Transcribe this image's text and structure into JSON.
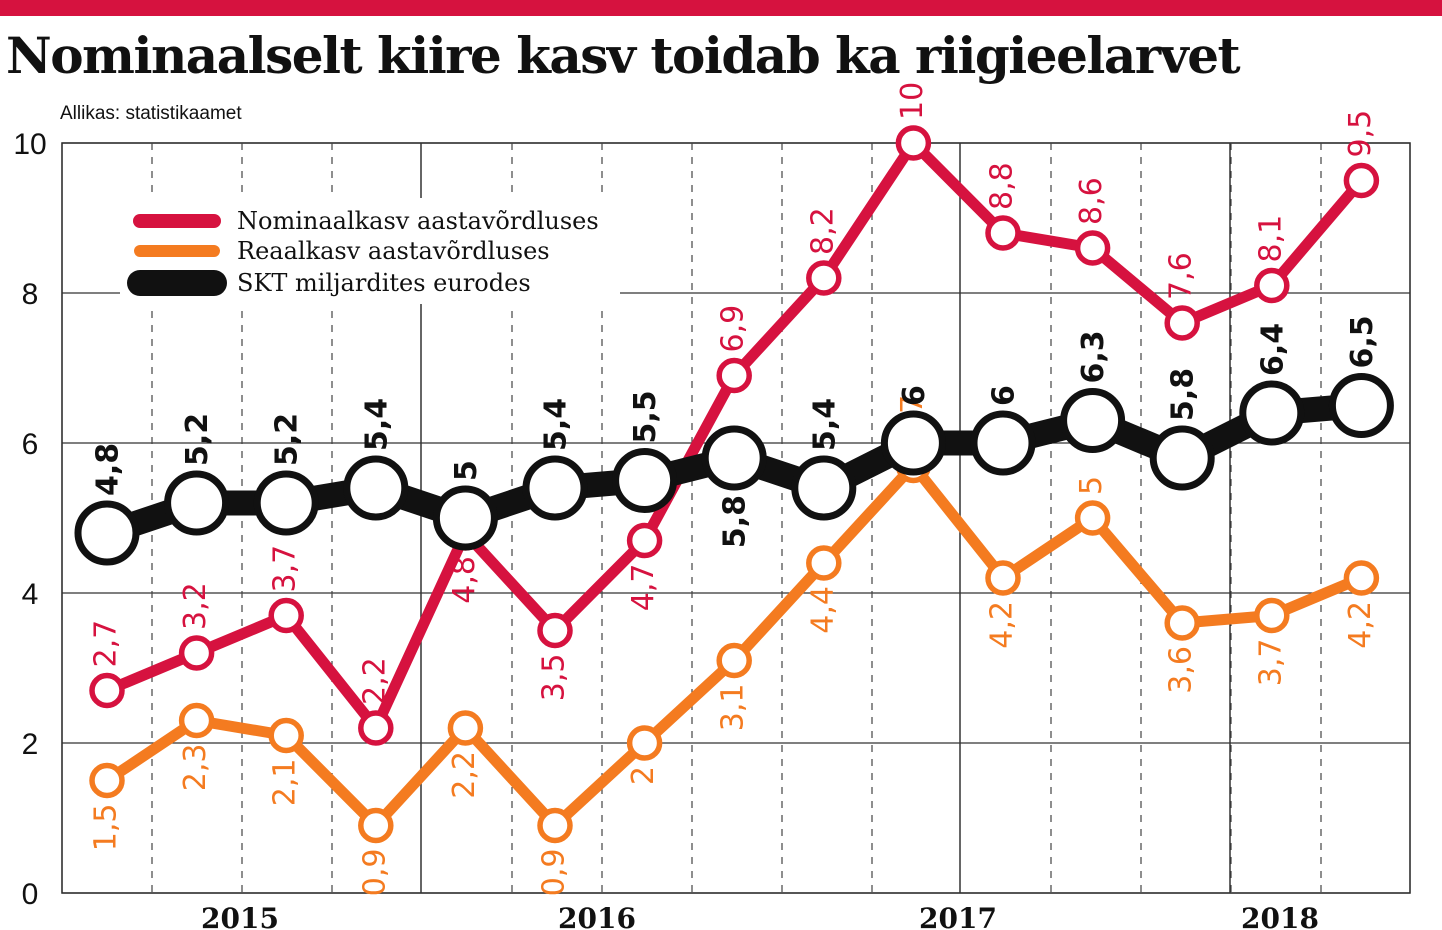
{
  "title": "Nominaalselt kiire kasv toidab ka riigieelarvet",
  "source": "Allikas: statistikaamet",
  "colors": {
    "nominal": "#d6123f",
    "real": "#f47b20",
    "gdp": "#111111",
    "accent_bar": "#d6123f"
  },
  "chart_data": {
    "type": "line",
    "title": "Nominaalselt kiire kasv toidab ka riigieelarvet",
    "ylim": [
      0,
      10
    ],
    "yticks": [
      "0",
      "2",
      "4",
      "6",
      "8",
      "10"
    ],
    "grid": true,
    "legend_position": "top-left",
    "years": [
      "2015",
      "2016",
      "2017",
      "2018"
    ],
    "points_count": 15,
    "series": [
      {
        "key": "nominal",
        "name": "Nominaalkasv aastavõrdluses",
        "values": [
          2.7,
          3.2,
          3.7,
          2.2,
          4.8,
          3.5,
          4.7,
          6.9,
          8.2,
          10,
          8.8,
          8.6,
          7.6,
          8.1,
          9.5
        ],
        "labels": [
          "2,7",
          "3,2",
          "3,7",
          "2,2",
          "4,8",
          "3,5",
          "4,7",
          "6,9",
          "8,2",
          "10",
          "8,8",
          "8,6",
          "7,6",
          "8,1",
          "9,5"
        ]
      },
      {
        "key": "real",
        "name": "Reaalkasv aastavõrdluses",
        "values": [
          1.5,
          2.3,
          2.1,
          0.9,
          2.2,
          0.9,
          2,
          3.1,
          4.4,
          5.7,
          4.2,
          5,
          3.6,
          3.7,
          4.2
        ],
        "labels": [
          "1,5",
          "2,3",
          "2,1",
          "0,9",
          "2,2",
          "0,9",
          "2",
          "3,1",
          "4,4",
          "5,7",
          "4,2",
          "5",
          "3,6",
          "3,7",
          "4,2"
        ]
      },
      {
        "key": "gdp",
        "name": "SKT miljardites eurodes",
        "values": [
          4.8,
          5.2,
          5.2,
          5.4,
          5,
          5.4,
          5.5,
          5.8,
          5.4,
          6,
          6,
          6.3,
          5.8,
          6.4,
          6.5
        ],
        "labels": [
          "4,8",
          "5,2",
          "5,2",
          "5,4",
          "5",
          "5,4",
          "5,5",
          "5,8",
          "5,4",
          "6",
          "6",
          "6,3",
          "5,8",
          "6,4",
          "6,5"
        ]
      }
    ]
  }
}
